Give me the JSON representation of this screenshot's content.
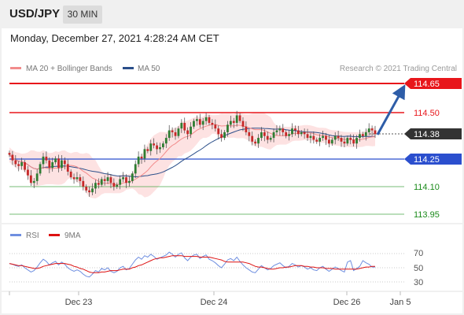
{
  "header": {
    "symbol": "USD/JPY",
    "timeframe": "30 MIN"
  },
  "datetime": "Monday, December 27, 2021 4:28:24 AM CET",
  "legend": {
    "ma20": "MA 20 + Bollinger Bands",
    "ma50": "MA 50",
    "credit": "Research © 2021 Trading Central"
  },
  "colors": {
    "resistance": "#e8161b",
    "support": "#2b4fce",
    "target": "#1a8a1a",
    "current": "#333333",
    "arrow": "#2e5da8",
    "ma20": "#f28c8c",
    "ma50": "#2b4f8a",
    "bollinger_fill": "#fde2e2",
    "candle_up": "#2e7d32",
    "candle_down": "#c62828",
    "rsi": "#6f8fe0",
    "rsi_ma": "#dd1111"
  },
  "chart_data": [
    {
      "type": "candlestick",
      "title": "USD/JPY 30 MIN",
      "x_ticks": [
        "Dec 23",
        "Dec 24",
        "Dec 26",
        "Jan 5"
      ],
      "price_range": [
        113.85,
        114.72
      ],
      "levels": [
        {
          "label": "114.65",
          "value": 114.65,
          "kind": "resistance"
        },
        {
          "label": "114.50",
          "value": 114.5,
          "kind": "resistance"
        },
        {
          "label": "114.38",
          "value": 114.38,
          "kind": "current"
        },
        {
          "label": "114.25",
          "value": 114.25,
          "kind": "support"
        },
        {
          "label": "114.10",
          "value": 114.1,
          "kind": "target"
        },
        {
          "label": "113.95",
          "value": 113.95,
          "kind": "target"
        }
      ],
      "projection": {
        "from": 114.38,
        "to": 114.63
      },
      "close": [
        114.27,
        114.24,
        114.22,
        114.21,
        114.23,
        114.19,
        114.16,
        114.12,
        114.13,
        114.17,
        114.22,
        114.26,
        114.24,
        114.2,
        114.23,
        114.25,
        114.2,
        114.24,
        114.22,
        114.18,
        114.15,
        114.14,
        114.15,
        114.13,
        114.1,
        114.08,
        114.07,
        114.09,
        114.12,
        114.11,
        114.14,
        114.13,
        114.15,
        114.12,
        114.1,
        114.11,
        114.14,
        114.15,
        114.12,
        114.13,
        114.17,
        114.22,
        114.26,
        114.25,
        114.3,
        114.29,
        114.33,
        114.32,
        114.3,
        114.31,
        114.33,
        114.36,
        114.4,
        114.39,
        114.37,
        114.41,
        114.44,
        114.4,
        114.38,
        114.42,
        114.45,
        114.46,
        114.43,
        114.45,
        114.47,
        114.44,
        114.43,
        114.41,
        114.38,
        114.36,
        114.39,
        114.43,
        114.45,
        114.44,
        114.48,
        114.45,
        114.42,
        114.39,
        114.37,
        114.34,
        114.33,
        114.36,
        114.39,
        114.37,
        114.35,
        114.36,
        114.39,
        114.4,
        114.41,
        114.39,
        114.37,
        114.38,
        114.41,
        114.4,
        114.38,
        114.39,
        114.38,
        114.36,
        114.37,
        114.35,
        114.34,
        114.36,
        114.37,
        114.35,
        114.33,
        114.35,
        114.37,
        114.36,
        114.34,
        114.33,
        114.36,
        114.35,
        114.33,
        114.36,
        114.38,
        114.37,
        114.39,
        114.41,
        114.4,
        114.38
      ]
    },
    {
      "type": "line",
      "title": "RSI",
      "series": [
        {
          "name": "RSI"
        },
        {
          "name": "9MA"
        }
      ],
      "y_ticks": [
        70,
        50,
        30
      ],
      "ylim": [
        20,
        80
      ],
      "rsi": [
        56,
        55,
        53,
        52,
        54,
        50,
        47,
        44,
        46,
        51,
        57,
        62,
        59,
        54,
        57,
        59,
        54,
        58,
        55,
        50,
        47,
        45,
        47,
        45,
        41,
        38,
        37,
        41,
        46,
        44,
        49,
        47,
        50,
        45,
        43,
        45,
        50,
        52,
        47,
        49,
        55,
        61,
        65,
        62,
        67,
        65,
        69,
        66,
        62,
        64,
        66,
        68,
        72,
        69,
        65,
        69,
        71,
        64,
        60,
        65,
        68,
        69,
        63,
        66,
        68,
        62,
        60,
        57,
        53,
        50,
        55,
        61,
        63,
        60,
        65,
        59,
        54,
        50,
        47,
        44,
        43,
        48,
        53,
        50,
        47,
        49,
        53,
        55,
        57,
        53,
        50,
        52,
        56,
        54,
        51,
        53,
        51,
        48,
        50,
        47,
        46,
        50,
        52,
        48,
        45,
        48,
        51,
        49,
        46,
        44,
        58,
        60,
        46,
        49,
        52,
        60,
        57,
        55,
        51,
        51
      ],
      "rsi_ma": [
        56,
        55,
        54,
        53,
        53,
        52,
        51,
        50,
        49,
        49,
        50,
        52,
        53,
        54,
        55,
        56,
        56,
        56,
        56,
        55,
        54,
        52,
        51,
        49,
        48,
        46,
        44,
        43,
        43,
        43,
        44,
        44,
        45,
        46,
        46,
        46,
        47,
        48,
        48,
        48,
        50,
        51,
        53,
        54,
        56,
        58,
        60,
        62,
        63,
        64,
        64,
        65,
        66,
        67,
        67,
        67,
        67,
        66,
        66,
        66,
        66,
        66,
        65,
        65,
        65,
        65,
        64,
        63,
        62,
        61,
        59,
        58,
        58,
        58,
        58,
        58,
        58,
        57,
        56,
        54,
        52,
        51,
        51,
        50,
        49,
        48,
        48,
        49,
        50,
        50,
        51,
        51,
        52,
        53,
        53,
        53,
        52,
        52,
        51,
        51,
        50,
        50,
        50,
        49,
        49,
        49,
        48,
        48,
        48,
        48,
        48,
        48,
        48,
        48,
        49,
        50,
        51,
        51,
        52,
        52
      ],
      "x_ticks": [
        "Dec 23",
        "Dec 24",
        "Dec 26",
        "Jan 5"
      ]
    }
  ]
}
